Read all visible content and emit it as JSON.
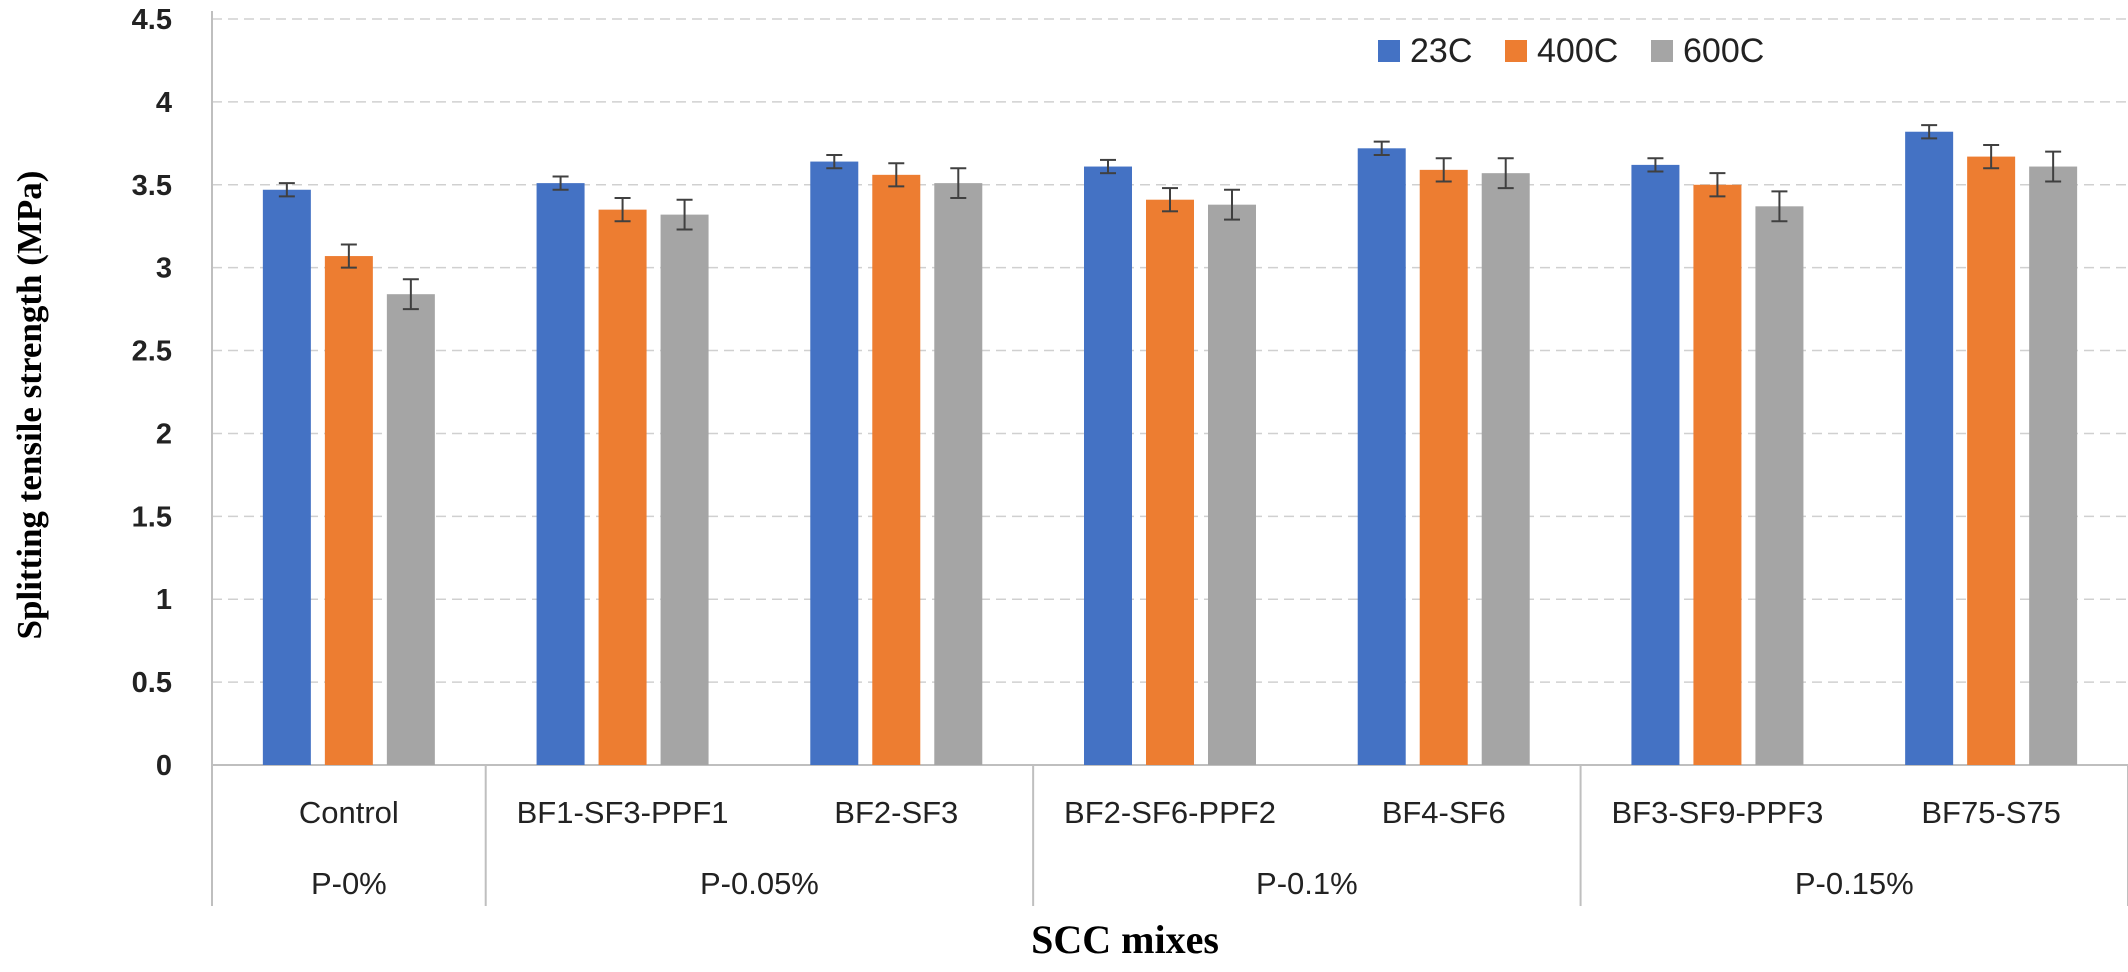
{
  "chart_data": {
    "type": "bar",
    "xlabel": "SCC mixes",
    "ylabel": "Splitting tensile strength (MPa)",
    "ylim": [
      0,
      4.5
    ],
    "yticks": [
      "0",
      "0.5",
      "1",
      "1.5",
      "2",
      "2.5",
      "3",
      "3.5",
      "4",
      "4.5"
    ],
    "grid": "horizontal dashed",
    "legend_position": "top-right",
    "categories": [
      "Control",
      "BF1-SF3-PPF1",
      "BF2-SF3",
      "BF2-SF6-PPF2",
      "BF4-SF6",
      "BF3-SF9-PPF3",
      "BF75-S75"
    ],
    "groups": [
      {
        "label": "P-0%",
        "size": 1
      },
      {
        "label": "P-0.05%",
        "size": 2
      },
      {
        "label": "P-0.1%",
        "size": 2
      },
      {
        "label": "P-0.15%",
        "size": 2
      }
    ],
    "series": [
      {
        "name": "23C",
        "color": "#4472C4",
        "values": [
          3.47,
          3.51,
          3.64,
          3.61,
          3.72,
          3.62,
          3.82
        ],
        "errors": [
          0.04,
          0.04,
          0.04,
          0.04,
          0.04,
          0.04,
          0.04
        ]
      },
      {
        "name": "400C",
        "color": "#ED7D31",
        "values": [
          3.07,
          3.35,
          3.56,
          3.41,
          3.59,
          3.5,
          3.67
        ],
        "errors": [
          0.07,
          0.07,
          0.07,
          0.07,
          0.07,
          0.07,
          0.07
        ]
      },
      {
        "name": "600C",
        "color": "#A5A5A5",
        "values": [
          2.84,
          3.32,
          3.51,
          3.38,
          3.57,
          3.37,
          3.61
        ],
        "errors": [
          0.09,
          0.09,
          0.09,
          0.09,
          0.09,
          0.09,
          0.09
        ]
      }
    ]
  }
}
